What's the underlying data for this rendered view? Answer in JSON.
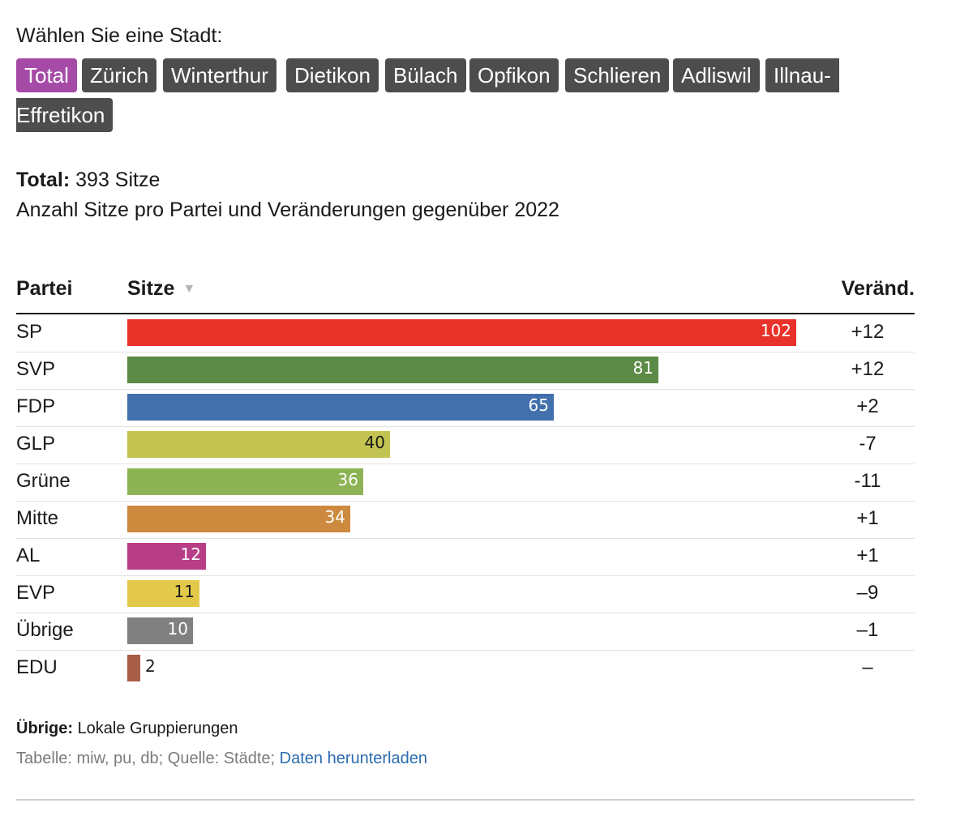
{
  "selector": {
    "prompt": "Wählen Sie eine Stadt:",
    "tabs": [
      "Total",
      "Zürich",
      "Winterthur",
      "Dietikon",
      "Bülach",
      "Opfikon",
      "Schlieren",
      "Adliswil",
      "Illnau-",
      "Effretikon"
    ],
    "active": "Total"
  },
  "summary": {
    "label": "Total:",
    "value": "393 Sitze",
    "subtitle": "Anzahl Sitze pro Partei und Veränderungen gegenüber 2022"
  },
  "table": {
    "headers": {
      "party": "Partei",
      "seats": "Sitze",
      "change": "Veränd."
    },
    "sort_icon": "sort-down-icon"
  },
  "chart_data": {
    "type": "bar",
    "orientation": "horizontal",
    "categories": [
      "SP",
      "SVP",
      "FDP",
      "GLP",
      "Grüne",
      "Mitte",
      "AL",
      "EVP",
      "Übrige",
      "EDU"
    ],
    "values": [
      102,
      81,
      65,
      40,
      36,
      34,
      12,
      11,
      10,
      2
    ],
    "changes": [
      "+12",
      "+12",
      "+2",
      "-7",
      "-11",
      "+1",
      "+1",
      "–9",
      "–1",
      "–"
    ],
    "colors": [
      "#e8322a",
      "#5a8a45",
      "#4270ad",
      "#c3c352",
      "#8cb455",
      "#cd8a3f",
      "#b83d87",
      "#e3c94a",
      "#808080",
      "#a85d46"
    ],
    "label_colors": [
      "#ffffff",
      "#ffffff",
      "#ffffff",
      "#1a1a1a",
      "#ffffff",
      "#ffffff",
      "#ffffff",
      "#1a1a1a",
      "#ffffff",
      "#1a1a1a"
    ],
    "xlim": [
      0,
      102
    ],
    "title": "Total: 393 Sitze",
    "subtitle": "Anzahl Sitze pro Partei und Veränderungen gegenüber 2022"
  },
  "footnote": {
    "label": "Übrige:",
    "text": "Lokale Gruppierungen"
  },
  "source": {
    "text": "Tabelle: miw, pu, db; Quelle: Städte;",
    "link": "Daten herunterladen"
  }
}
